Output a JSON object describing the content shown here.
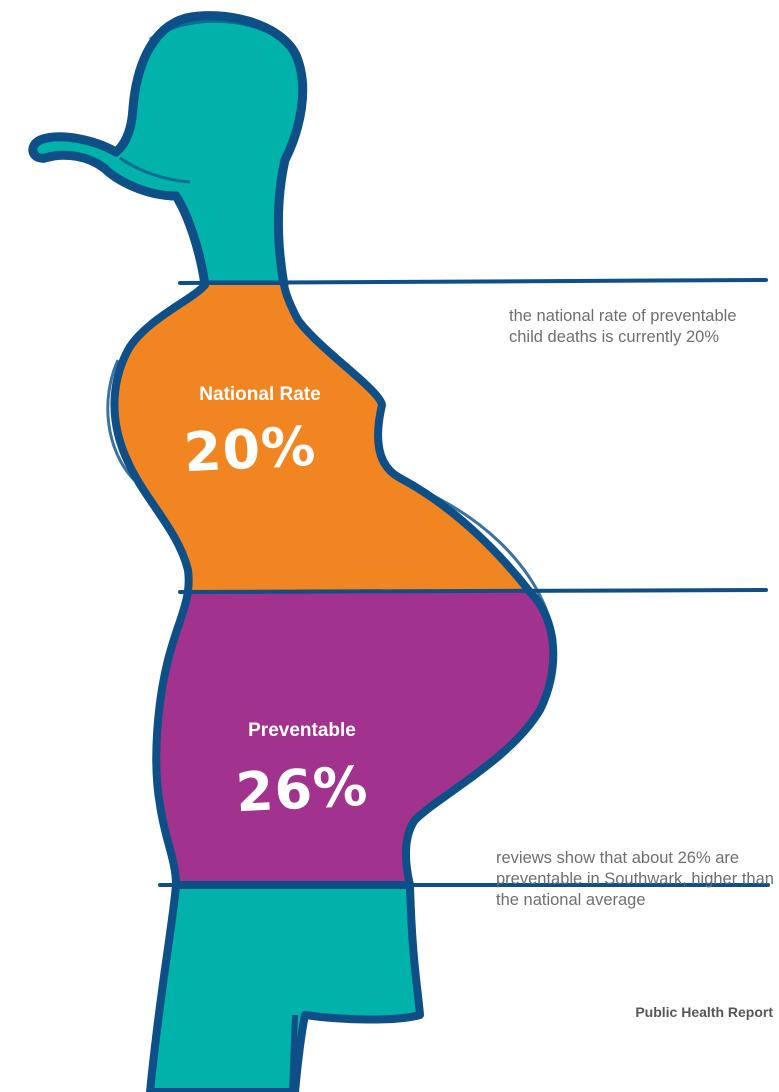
{
  "colors": {
    "teal": "#01b2aa",
    "navy": "#0d4f86",
    "orange": "#f08522",
    "purple": "#a1338f",
    "text_gray": "#6d6f71"
  },
  "segments": [
    {
      "label": "National Rate",
      "value": "20%",
      "color": "#f08522"
    },
    {
      "label": "Preventable",
      "value": "26%",
      "color": "#a1338f"
    }
  ],
  "annotations": [
    "the national rate of preventable child deaths is currently 20%",
    "reviews show that about 26% are preventable in Southwark, higher than the national average"
  ],
  "footer": "Public Health Report"
}
